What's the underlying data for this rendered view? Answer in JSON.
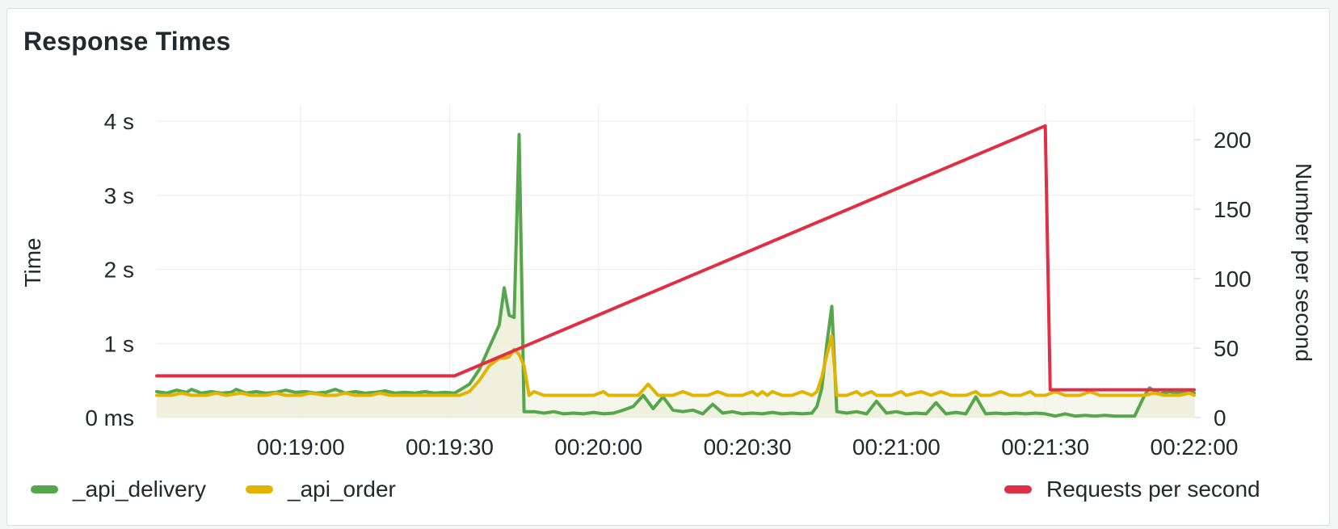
{
  "panel": {
    "title": "Response Times"
  },
  "colors": {
    "delivery": "#56a64b",
    "order": "#e0b400",
    "rps": "#e02f44",
    "fill": "#eef0dc",
    "grid": "#ececec",
    "text": "#24292e"
  },
  "chart_data": {
    "type": "line",
    "title": "Response Times",
    "x_ticks": [
      "00:19:00",
      "00:19:30",
      "00:20:00",
      "00:20:30",
      "00:21:00",
      "00:21:30",
      "00:22:00"
    ],
    "x_range": [
      "00:18:31",
      "00:22:00"
    ],
    "y_left": {
      "label": "Time",
      "ticks": [
        "0 ms",
        "1 s",
        "2 s",
        "3 s",
        "4 s"
      ],
      "range": [
        0,
        4
      ]
    },
    "y_right": {
      "label": "Number per second",
      "ticks": [
        "0",
        "50",
        "100",
        "150",
        "200"
      ],
      "range": [
        0,
        225
      ]
    },
    "series": [
      {
        "name": "_api_delivery",
        "axis": "left",
        "unit": "s",
        "points": [
          [
            0,
            0.35
          ],
          [
            2,
            0.33
          ],
          [
            4,
            0.37
          ],
          [
            6,
            0.34
          ],
          [
            7,
            0.38
          ],
          [
            9,
            0.33
          ],
          [
            11,
            0.35
          ],
          [
            13,
            0.33
          ],
          [
            15,
            0.34
          ],
          [
            16,
            0.38
          ],
          [
            18,
            0.33
          ],
          [
            20,
            0.35
          ],
          [
            22,
            0.33
          ],
          [
            24,
            0.34
          ],
          [
            26,
            0.37
          ],
          [
            28,
            0.34
          ],
          [
            30,
            0.35
          ],
          [
            32,
            0.33
          ],
          [
            34,
            0.34
          ],
          [
            36,
            0.38
          ],
          [
            38,
            0.33
          ],
          [
            40,
            0.35
          ],
          [
            42,
            0.33
          ],
          [
            44,
            0.34
          ],
          [
            46,
            0.36
          ],
          [
            48,
            0.33
          ],
          [
            50,
            0.34
          ],
          [
            52,
            0.33
          ],
          [
            54,
            0.35
          ],
          [
            56,
            0.33
          ],
          [
            58,
            0.34
          ],
          [
            60,
            0.33
          ],
          [
            61,
            0.37
          ],
          [
            63,
            0.45
          ],
          [
            65,
            0.65
          ],
          [
            67,
            0.95
          ],
          [
            68,
            1.1
          ],
          [
            69,
            1.25
          ],
          [
            70,
            1.75
          ],
          [
            71,
            1.38
          ],
          [
            72,
            1.35
          ],
          [
            73,
            3.82
          ],
          [
            74,
            0.08
          ],
          [
            76,
            0.08
          ],
          [
            78,
            0.06
          ],
          [
            80,
            0.08
          ],
          [
            82,
            0.05
          ],
          [
            84,
            0.06
          ],
          [
            86,
            0.05
          ],
          [
            88,
            0.07
          ],
          [
            90,
            0.05
          ],
          [
            92,
            0.06
          ],
          [
            94,
            0.1
          ],
          [
            96,
            0.15
          ],
          [
            98,
            0.3
          ],
          [
            100,
            0.12
          ],
          [
            102,
            0.28
          ],
          [
            104,
            0.1
          ],
          [
            106,
            0.08
          ],
          [
            108,
            0.1
          ],
          [
            110,
            0.05
          ],
          [
            112,
            0.18
          ],
          [
            114,
            0.06
          ],
          [
            116,
            0.08
          ],
          [
            118,
            0.05
          ],
          [
            120,
            0.06
          ],
          [
            122,
            0.05
          ],
          [
            124,
            0.07
          ],
          [
            126,
            0.05
          ],
          [
            128,
            0.06
          ],
          [
            130,
            0.05
          ],
          [
            132,
            0.06
          ],
          [
            133,
            0.15
          ],
          [
            134,
            0.4
          ],
          [
            135,
            1.0
          ],
          [
            136,
            1.5
          ],
          [
            137,
            0.08
          ],
          [
            139,
            0.06
          ],
          [
            141,
            0.08
          ],
          [
            143,
            0.05
          ],
          [
            145,
            0.22
          ],
          [
            147,
            0.06
          ],
          [
            149,
            0.08
          ],
          [
            151,
            0.05
          ],
          [
            153,
            0.06
          ],
          [
            155,
            0.05
          ],
          [
            157,
            0.2
          ],
          [
            159,
            0.05
          ],
          [
            161,
            0.07
          ],
          [
            163,
            0.05
          ],
          [
            165,
            0.28
          ],
          [
            167,
            0.05
          ],
          [
            169,
            0.06
          ],
          [
            171,
            0.05
          ],
          [
            173,
            0.06
          ],
          [
            175,
            0.05
          ],
          [
            177,
            0.06
          ],
          [
            179,
            0.05
          ],
          [
            181,
            0.02
          ],
          [
            183,
            0.05
          ],
          [
            185,
            0.02
          ],
          [
            187,
            0.03
          ],
          [
            189,
            0.02
          ],
          [
            191,
            0.03
          ],
          [
            193,
            0.02
          ],
          [
            195,
            0.02
          ],
          [
            197,
            0.02
          ],
          [
            199,
            0.3
          ],
          [
            200,
            0.4
          ],
          [
            202,
            0.32
          ],
          [
            204,
            0.35
          ],
          [
            206,
            0.33
          ],
          [
            208,
            0.35
          ],
          [
            209,
            0.33
          ]
        ]
      },
      {
        "name": "_api_order",
        "axis": "left",
        "unit": "s",
        "points": [
          [
            0,
            0.3
          ],
          [
            3,
            0.3
          ],
          [
            5,
            0.33
          ],
          [
            7,
            0.3
          ],
          [
            10,
            0.3
          ],
          [
            12,
            0.33
          ],
          [
            14,
            0.3
          ],
          [
            17,
            0.33
          ],
          [
            19,
            0.3
          ],
          [
            22,
            0.3
          ],
          [
            24,
            0.33
          ],
          [
            26,
            0.3
          ],
          [
            29,
            0.3
          ],
          [
            31,
            0.33
          ],
          [
            34,
            0.3
          ],
          [
            36,
            0.3
          ],
          [
            38,
            0.33
          ],
          [
            40,
            0.3
          ],
          [
            43,
            0.3
          ],
          [
            45,
            0.33
          ],
          [
            47,
            0.3
          ],
          [
            50,
            0.3
          ],
          [
            53,
            0.3
          ],
          [
            55,
            0.3
          ],
          [
            57,
            0.3
          ],
          [
            59,
            0.3
          ],
          [
            61,
            0.3
          ],
          [
            63,
            0.35
          ],
          [
            65,
            0.5
          ],
          [
            67,
            0.7
          ],
          [
            69,
            0.8
          ],
          [
            70,
            0.8
          ],
          [
            71,
            0.82
          ],
          [
            72,
            0.92
          ],
          [
            73,
            0.85
          ],
          [
            74,
            0.7
          ],
          [
            75,
            0.3
          ],
          [
            76,
            0.35
          ],
          [
            78,
            0.3
          ],
          [
            82,
            0.3
          ],
          [
            84,
            0.3
          ],
          [
            88,
            0.3
          ],
          [
            90,
            0.35
          ],
          [
            91,
            0.3
          ],
          [
            94,
            0.3
          ],
          [
            97,
            0.3
          ],
          [
            99,
            0.45
          ],
          [
            101,
            0.3
          ],
          [
            104,
            0.3
          ],
          [
            106,
            0.35
          ],
          [
            108,
            0.3
          ],
          [
            111,
            0.3
          ],
          [
            113,
            0.35
          ],
          [
            115,
            0.3
          ],
          [
            118,
            0.3
          ],
          [
            120,
            0.35
          ],
          [
            121,
            0.3
          ],
          [
            122,
            0.35
          ],
          [
            123,
            0.3
          ],
          [
            124,
            0.35
          ],
          [
            126,
            0.3
          ],
          [
            128,
            0.3
          ],
          [
            130,
            0.35
          ],
          [
            132,
            0.3
          ],
          [
            133,
            0.35
          ],
          [
            134,
            0.55
          ],
          [
            135,
            0.85
          ],
          [
            136,
            1.1
          ],
          [
            137,
            0.3
          ],
          [
            139,
            0.3
          ],
          [
            141,
            0.35
          ],
          [
            142,
            0.3
          ],
          [
            144,
            0.35
          ],
          [
            145,
            0.3
          ],
          [
            148,
            0.3
          ],
          [
            150,
            0.35
          ],
          [
            151,
            0.3
          ],
          [
            154,
            0.35
          ],
          [
            156,
            0.3
          ],
          [
            158,
            0.35
          ],
          [
            160,
            0.3
          ],
          [
            163,
            0.3
          ],
          [
            165,
            0.35
          ],
          [
            166,
            0.3
          ],
          [
            168,
            0.3
          ],
          [
            170,
            0.35
          ],
          [
            172,
            0.3
          ],
          [
            174,
            0.3
          ],
          [
            176,
            0.35
          ],
          [
            177,
            0.3
          ],
          [
            179,
            0.3
          ],
          [
            181,
            0.35
          ],
          [
            183,
            0.3
          ],
          [
            186,
            0.3
          ],
          [
            188,
            0.35
          ],
          [
            190,
            0.3
          ],
          [
            193,
            0.3
          ],
          [
            195,
            0.3
          ],
          [
            197,
            0.3
          ],
          [
            199,
            0.3
          ],
          [
            201,
            0.33
          ],
          [
            203,
            0.3
          ],
          [
            206,
            0.3
          ],
          [
            208,
            0.33
          ],
          [
            209,
            0.3
          ]
        ]
      },
      {
        "name": "Requests per second",
        "axis": "right",
        "unit": "req/s",
        "points": [
          [
            0,
            30
          ],
          [
            60,
            30
          ],
          [
            179,
            210
          ],
          [
            180,
            20
          ],
          [
            209,
            20
          ]
        ]
      }
    ],
    "legend": {
      "placement": "bottom",
      "items": [
        "_api_delivery",
        "_api_order",
        "Requests per second"
      ]
    },
    "grid": true
  }
}
